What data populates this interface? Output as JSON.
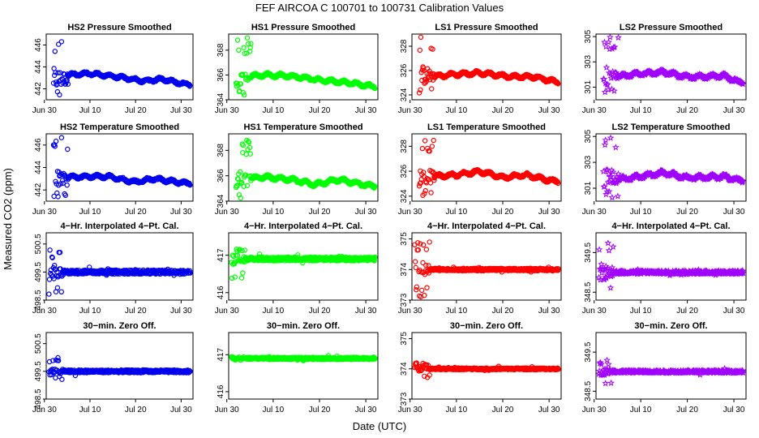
{
  "figure": {
    "title": "FEF    AIRCOA C    100701 to 100731    Calibration Values",
    "xlabel": "Date (UTC)",
    "ylabel": "Measured CO2 (ppm)",
    "xtick_labels": [
      "Jun 30",
      "Jul 10",
      "Jul 20",
      "Jul 30"
    ]
  },
  "chart_data": [
    {
      "type": "scatter",
      "title": "HS2 Pressure Smoothed",
      "color": "#0000ee",
      "marker": "circle",
      "ylim": [
        441,
        447
      ],
      "yticks": [
        442,
        444,
        446
      ],
      "shape": "smooth",
      "level": 442.9,
      "cal_start": 2.0,
      "cal_min": 441.2,
      "cal_max": 446.8,
      "wobble": [
        [
          443.2,
          2.0
        ],
        [
          443.4,
          10.0
        ],
        [
          443.1,
          16.0
        ],
        [
          442.7,
          22.0
        ],
        [
          442.9,
          26.0
        ],
        [
          442.4,
          31.0
        ]
      ]
    },
    {
      "type": "scatter",
      "title": "HS1 Pressure Smoothed",
      "color": "#00ff00",
      "marker": "circle",
      "ylim": [
        364,
        369.3
      ],
      "yticks": [
        364,
        366,
        368
      ],
      "shape": "smooth",
      "level": 365.7,
      "cal_start": 2.0,
      "cal_min": 364.1,
      "cal_max": 369.0,
      "wobble": [
        [
          365.8,
          2.0
        ],
        [
          366.0,
          8.0
        ],
        [
          365.9,
          14.0
        ],
        [
          365.6,
          20.0
        ],
        [
          365.4,
          26.0
        ],
        [
          365.1,
          31.0
        ]
      ]
    },
    {
      "type": "scatter",
      "title": "LS1 Pressure Smoothed",
      "color": "#ff0000",
      "marker": "circle",
      "ylim": [
        323.6,
        329
      ],
      "yticks": [
        324,
        326,
        328
      ],
      "shape": "smooth",
      "level": 325.6,
      "cal_start": 2.0,
      "cal_min": 323.8,
      "cal_max": 328.8,
      "wobble": [
        [
          325.4,
          2.0
        ],
        [
          325.7,
          10.0
        ],
        [
          325.8,
          15.0
        ],
        [
          325.5,
          22.0
        ],
        [
          325.5,
          27.0
        ],
        [
          325.1,
          31.0
        ]
      ]
    },
    {
      "type": "scatter",
      "title": "LS2 Pressure Smoothed",
      "color": "#a000ff",
      "marker": "star",
      "ylim": [
        300,
        305.2
      ],
      "yticks": [
        301,
        303,
        305
      ],
      "shape": "smooth",
      "level": 301.8,
      "cal_start": 2.0,
      "cal_min": 300.2,
      "cal_max": 305.1,
      "wobble": [
        [
          301.6,
          2.0
        ],
        [
          302.0,
          8.0
        ],
        [
          302.2,
          15.0
        ],
        [
          301.8,
          20.0
        ],
        [
          301.9,
          28.0
        ],
        [
          301.4,
          31.0
        ]
      ]
    },
    {
      "type": "scatter",
      "title": "HS2 Temperature Smoothed",
      "color": "#0000ee",
      "marker": "circle",
      "ylim": [
        441,
        447
      ],
      "yticks": [
        442,
        444,
        446
      ],
      "shape": "smooth",
      "level": 442.9,
      "cal_start": 2.0,
      "cal_min": 441.2,
      "cal_max": 446.8,
      "wobble": [
        [
          443.1,
          2.0
        ],
        [
          443.2,
          10.0
        ],
        [
          443.2,
          14.0
        ],
        [
          442.7,
          20.0
        ],
        [
          443.0,
          24.0
        ],
        [
          442.6,
          31.0
        ]
      ]
    },
    {
      "type": "scatter",
      "title": "HS1 Temperature Smoothed",
      "color": "#00ff00",
      "marker": "circle",
      "ylim": [
        364,
        369.3
      ],
      "yticks": [
        364,
        366,
        368
      ],
      "shape": "smooth",
      "level": 365.7,
      "cal_start": 2.0,
      "cal_min": 364.1,
      "cal_max": 369.0,
      "wobble": [
        [
          365.6,
          2.0
        ],
        [
          365.9,
          8.0
        ],
        [
          365.7,
          14.0
        ],
        [
          365.3,
          19.0
        ],
        [
          365.7,
          24.0
        ],
        [
          365.2,
          31.0
        ]
      ]
    },
    {
      "type": "scatter",
      "title": "LS1 Temperature Smoothed",
      "color": "#ff0000",
      "marker": "circle",
      "ylim": [
        323.6,
        329
      ],
      "yticks": [
        324,
        326,
        328
      ],
      "shape": "smooth",
      "level": 325.6,
      "cal_start": 2.0,
      "cal_min": 323.8,
      "cal_max": 328.8,
      "wobble": [
        [
          325.5,
          2.0
        ],
        [
          325.7,
          10.0
        ],
        [
          326.0,
          15.0
        ],
        [
          325.5,
          20.0
        ],
        [
          325.7,
          25.0
        ],
        [
          325.2,
          31.0
        ]
      ]
    },
    {
      "type": "scatter",
      "title": "LS2 Temperature Smoothed",
      "color": "#a000ff",
      "marker": "star",
      "ylim": [
        300,
        305.2
      ],
      "yticks": [
        301,
        303,
        305
      ],
      "shape": "smooth",
      "level": 301.8,
      "cal_start": 2.0,
      "cal_min": 300.2,
      "cal_max": 305.1,
      "wobble": [
        [
          301.6,
          2.0
        ],
        [
          301.8,
          8.0
        ],
        [
          302.2,
          15.0
        ],
        [
          301.8,
          20.0
        ],
        [
          301.9,
          28.0
        ],
        [
          301.6,
          31.0
        ]
      ]
    },
    {
      "type": "scatter",
      "title": "4−Hr. Interpolated 4−Pt. Cal.",
      "color": "#0000ee",
      "marker": "circle",
      "ylim": [
        498.5,
        500.9
      ],
      "yticks": [
        498.5,
        499.5,
        500.5
      ],
      "shape": "flat",
      "level": 499.5,
      "spread": 0.07,
      "cal_start": 1.0,
      "cal_min": 498.6,
      "cal_max": 500.3
    },
    {
      "type": "scatter",
      "title": "4−Hr. Interpolated 4−Pt. Cal.",
      "color": "#00ff00",
      "marker": "circle",
      "ylim": [
        415.8,
        417.6
      ],
      "yticks": [
        416.0,
        417.0
      ],
      "shape": "flat",
      "level": 416.9,
      "spread": 0.05,
      "cal_start": 1.0,
      "cal_min": 416.3,
      "cal_max": 417.2
    },
    {
      "type": "scatter",
      "title": "4−Hr. Interpolated 4−Pt. Cal.",
      "color": "#ff0000",
      "marker": "circle",
      "ylim": [
        373,
        375.2
      ],
      "yticks": [
        373.0,
        374.0,
        375.0
      ],
      "shape": "flat",
      "level": 374.0,
      "spread": 0.04,
      "cal_start": 1.0,
      "cal_min": 373.1,
      "cal_max": 374.9
    },
    {
      "type": "scatter",
      "title": "4−Hr. Interpolated 4−Pt. Cal.",
      "color": "#a000ff",
      "marker": "star",
      "ylim": [
        348.3,
        350
      ],
      "yticks": [
        348.5,
        349.5
      ],
      "shape": "flat",
      "level": 349.0,
      "spread": 0.04,
      "cal_start": 1.0,
      "cal_min": 348.6,
      "cal_max": 349.9
    },
    {
      "type": "scatter",
      "title": "30−min. Zero Off.",
      "color": "#0000ee",
      "marker": "circle",
      "ylim": [
        498.5,
        500.9
      ],
      "yticks": [
        498.5,
        499.5,
        500.5
      ],
      "shape": "flat",
      "level": 499.5,
      "spread": 0.05,
      "cal_start": 1.0,
      "cal_min": 499.2,
      "cal_max": 500.0
    },
    {
      "type": "scatter",
      "title": "30−min. Zero Off.",
      "color": "#00ff00",
      "marker": "circle",
      "ylim": [
        415.8,
        417.6
      ],
      "yticks": [
        416.0,
        417.0
      ],
      "shape": "flat",
      "level": 416.9,
      "spread": 0.03,
      "cal_start": 1.0,
      "cal_min": 416.85,
      "cal_max": 416.95
    },
    {
      "type": "scatter",
      "title": "30−min. Zero Off.",
      "color": "#ff0000",
      "marker": "circle",
      "ylim": [
        373,
        375.2
      ],
      "yticks": [
        373.0,
        374.0,
        375.0
      ],
      "shape": "flat",
      "level": 374.0,
      "spread": 0.03,
      "cal_start": 1.0,
      "cal_min": 373.7,
      "cal_max": 374.2
    },
    {
      "type": "scatter",
      "title": "30−min. Zero Off.",
      "color": "#a000ff",
      "marker": "star",
      "ylim": [
        348.3,
        350
      ],
      "yticks": [
        348.5,
        349.5
      ],
      "shape": "flat",
      "level": 349.0,
      "spread": 0.03,
      "cal_start": 1.0,
      "cal_min": 348.7,
      "cal_max": 349.3
    }
  ]
}
